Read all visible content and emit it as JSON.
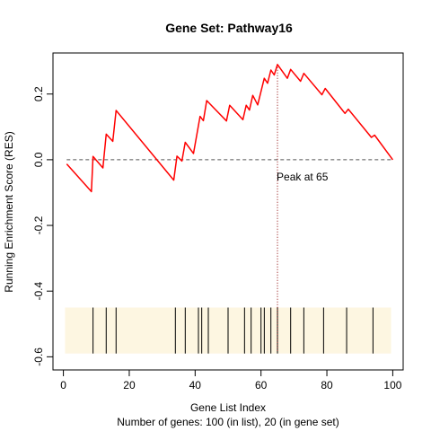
{
  "chart_data": {
    "type": "line",
    "title": "Gene Set:  Pathway16",
    "xlabel": "Gene List Index",
    "ylabel": "Running Enrichment Score (RES)",
    "subtitle": "Number of genes: 100 (in list), 20 (in gene set)",
    "xlim": [
      -3.16,
      103.16
    ],
    "ylim": [
      -0.64,
      0.325
    ],
    "x_ticks": [
      0,
      20,
      40,
      60,
      80,
      100
    ],
    "x_tick_labels": [
      "0",
      "20",
      "40",
      "60",
      "80",
      "100"
    ],
    "y_ticks": [
      -0.6,
      -0.4,
      -0.2,
      0.0,
      0.2
    ],
    "y_tick_labels": [
      "-0.6",
      "-0.4",
      "-0.2",
      "0.0",
      "0.2"
    ],
    "grid": false,
    "zero_line": {
      "y": 0,
      "style": "dashed",
      "color": "#555555"
    },
    "series": [
      {
        "color": "#ff0000",
        "points": [
          [
            1,
            -0.013
          ],
          [
            8.5,
            -0.097
          ],
          [
            9,
            0.01
          ],
          [
            12,
            -0.025
          ],
          [
            13,
            0.078
          ],
          [
            15,
            0.056
          ],
          [
            16,
            0.15
          ],
          [
            33.5,
            -0.062
          ],
          [
            34.5,
            0.011
          ],
          [
            36,
            -0.004
          ],
          [
            37,
            0.053
          ],
          [
            39.5,
            0.019
          ],
          [
            41.5,
            0.132
          ],
          [
            42.5,
            0.119
          ],
          [
            43.5,
            0.18
          ],
          [
            49.5,
            0.118
          ],
          [
            50.5,
            0.166
          ],
          [
            54.5,
            0.122
          ],
          [
            55.5,
            0.166
          ],
          [
            56.5,
            0.151
          ],
          [
            57.5,
            0.196
          ],
          [
            59,
            0.167
          ],
          [
            61,
            0.248
          ],
          [
            62,
            0.233
          ],
          [
            63,
            0.273
          ],
          [
            64,
            0.258
          ],
          [
            65,
            0.29
          ],
          [
            68,
            0.248
          ],
          [
            69,
            0.275
          ],
          [
            72,
            0.239
          ],
          [
            73,
            0.263
          ],
          [
            78.5,
            0.198
          ],
          [
            79.5,
            0.217
          ],
          [
            85.5,
            0.141
          ],
          [
            86.5,
            0.154
          ],
          [
            93.5,
            0.068
          ],
          [
            94.5,
            0.075
          ],
          [
            100,
            0.0
          ]
        ]
      }
    ],
    "peak": {
      "x": 65,
      "y": 0.29,
      "label": "Peak at 65",
      "line_color": "#8b0000"
    },
    "hits_panel": {
      "fill": "#fdf6e1",
      "y_range": [
        -0.59,
        -0.45
      ],
      "x_range": [
        0.5,
        99.5
      ],
      "hits": [
        9,
        13,
        16,
        34,
        37,
        41,
        42,
        44,
        50,
        55,
        57,
        60,
        61,
        63,
        65,
        69,
        73,
        79,
        86,
        94
      ]
    }
  }
}
